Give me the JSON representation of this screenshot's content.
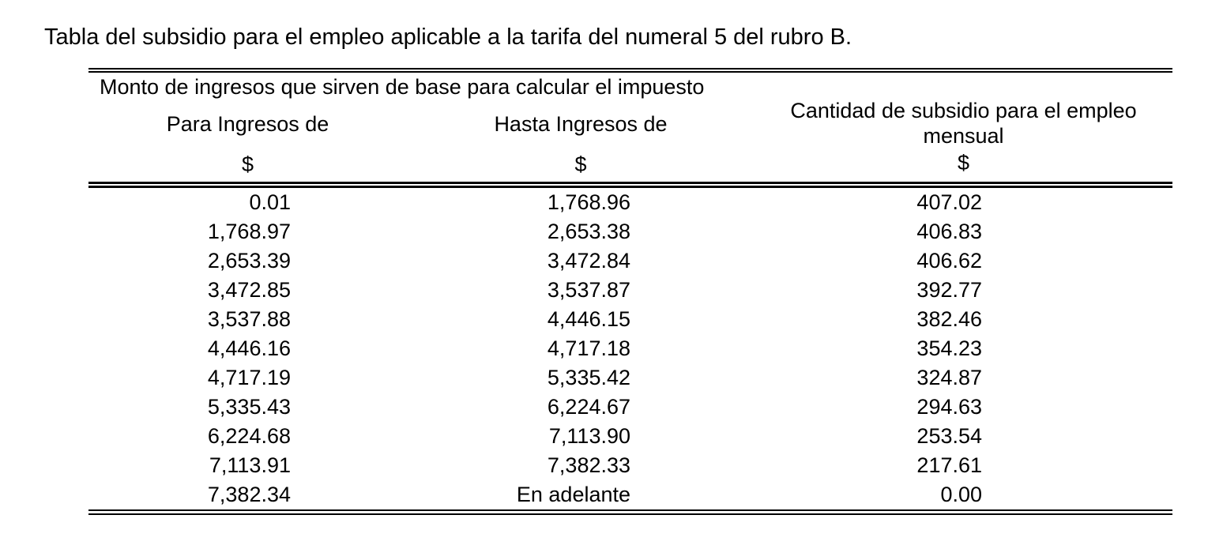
{
  "document": {
    "title": "Tabla del subsidio para el empleo aplicable a la tarifa del numeral 5 del rubro B."
  },
  "table": {
    "group_header": "Monto de ingresos que sirven de base para calcular el impuesto",
    "columns": [
      {
        "label": "Para Ingresos de",
        "currency": "$"
      },
      {
        "label": "Hasta Ingresos de",
        "currency": "$"
      },
      {
        "label": "Cantidad de subsidio para el empleo mensual",
        "currency": "$"
      }
    ],
    "rows": [
      [
        "0.01",
        "1,768.96",
        "407.02"
      ],
      [
        "1,768.97",
        "2,653.38",
        "406.83"
      ],
      [
        "2,653.39",
        "3,472.84",
        "406.62"
      ],
      [
        "3,472.85",
        "3,537.87",
        "392.77"
      ],
      [
        "3,537.88",
        "4,446.15",
        "382.46"
      ],
      [
        "4,446.16",
        "4,717.18",
        "354.23"
      ],
      [
        "4,717.19",
        "5,335.42",
        "324.87"
      ],
      [
        "5,335.43",
        "6,224.67",
        "294.63"
      ],
      [
        "6,224.68",
        "7,113.90",
        "253.54"
      ],
      [
        "7,113.91",
        "7,382.33",
        "217.61"
      ],
      [
        "7,382.34",
        "En adelante",
        "0.00"
      ]
    ]
  },
  "colors": {
    "text": "#000000",
    "background": "#ffffff",
    "rule": "#000000"
  }
}
